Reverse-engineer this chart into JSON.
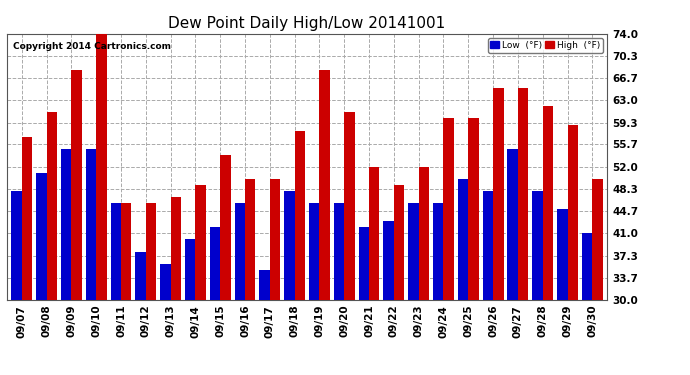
{
  "title": "Dew Point Daily High/Low 20141001",
  "copyright": "Copyright 2014 Cartronics.com",
  "dates": [
    "09/07",
    "09/08",
    "09/09",
    "09/10",
    "09/11",
    "09/12",
    "09/13",
    "09/14",
    "09/15",
    "09/16",
    "09/17",
    "09/18",
    "09/19",
    "09/20",
    "09/21",
    "09/22",
    "09/23",
    "09/24",
    "09/25",
    "09/26",
    "09/27",
    "09/28",
    "09/29",
    "09/30"
  ],
  "low_values": [
    48,
    51,
    55,
    55,
    46,
    38,
    36,
    40,
    42,
    46,
    35,
    48,
    46,
    46,
    42,
    43,
    46,
    46,
    50,
    48,
    55,
    48,
    45,
    41
  ],
  "high_values": [
    57,
    61,
    68,
    74,
    46,
    46,
    47,
    49,
    54,
    50,
    50,
    58,
    68,
    61,
    52,
    49,
    52,
    60,
    60,
    65,
    65,
    62,
    59,
    50
  ],
  "ybase": 30.0,
  "ylim": [
    30.0,
    74.0
  ],
  "yticks": [
    30.0,
    33.7,
    37.3,
    41.0,
    44.7,
    48.3,
    52.0,
    55.7,
    59.3,
    63.0,
    66.7,
    70.3,
    74.0
  ],
  "low_color": "#0000cc",
  "high_color": "#cc0000",
  "bg_color": "#ffffff",
  "grid_color": "#aaaaaa",
  "bar_width": 0.42,
  "title_fontsize": 11,
  "tick_fontsize": 7.5,
  "legend_low_label": "Low  (°F)",
  "legend_high_label": "High  (°F)"
}
